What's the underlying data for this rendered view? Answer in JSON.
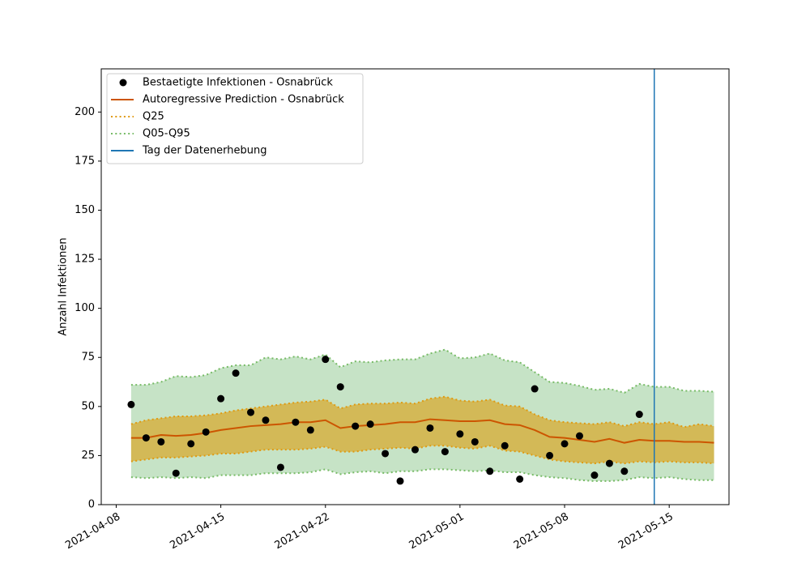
{
  "chart_data": {
    "type": "line",
    "ylabel": "Anzahl Infektionen",
    "x": [
      "2021-04-09",
      "2021-04-10",
      "2021-04-11",
      "2021-04-12",
      "2021-04-13",
      "2021-04-14",
      "2021-04-15",
      "2021-04-16",
      "2021-04-17",
      "2021-04-18",
      "2021-04-19",
      "2021-04-20",
      "2021-04-21",
      "2021-04-22",
      "2021-04-23",
      "2021-04-24",
      "2021-04-25",
      "2021-04-26",
      "2021-04-27",
      "2021-04-28",
      "2021-04-29",
      "2021-04-30",
      "2021-05-01",
      "2021-05-02",
      "2021-05-03",
      "2021-05-04",
      "2021-05-05",
      "2021-05-06",
      "2021-05-07",
      "2021-05-08",
      "2021-05-09",
      "2021-05-10",
      "2021-05-11",
      "2021-05-12",
      "2021-05-13",
      "2021-05-14",
      "2021-05-15",
      "2021-05-16",
      "2021-05-17",
      "2021-05-18"
    ],
    "series": [
      {
        "name": "Bestaetigte Infektionen - Osnabrück",
        "type": "scatter",
        "color": "#000000",
        "values": [
          51,
          34,
          32,
          16,
          31,
          37,
          54,
          67,
          47,
          43,
          19,
          42,
          38,
          74,
          60,
          40,
          41,
          26,
          12,
          28,
          39,
          27,
          36,
          32,
          17,
          30,
          13,
          59,
          25,
          31,
          35,
          15,
          21,
          17,
          46,
          null,
          null,
          null,
          null,
          null
        ]
      },
      {
        "name": "Autoregressive Prediction - Osnabrück",
        "type": "line",
        "color": "#cc5500",
        "values": [
          34,
          34,
          35.5,
          35,
          35.5,
          36.5,
          38,
          39,
          40,
          40.5,
          41,
          42,
          42,
          43,
          39,
          40,
          40.5,
          41,
          42,
          42,
          43.5,
          43,
          42.5,
          42.5,
          43,
          41,
          40.5,
          38,
          34.5,
          34,
          33,
          32,
          33.5,
          31.5,
          33,
          32.5,
          32.5,
          32,
          32,
          31.5
        ]
      },
      {
        "name": "Q25",
        "type": "band",
        "color": "#e09a10",
        "fill": "#d4b44a",
        "upper": [
          41,
          43,
          44,
          45,
          45,
          45.5,
          46.5,
          48,
          49,
          50,
          51,
          52,
          52.5,
          53.5,
          49,
          51,
          51.5,
          51.5,
          52,
          51.5,
          54,
          55,
          53,
          52.5,
          53.5,
          50.5,
          50,
          46,
          43,
          42,
          41.5,
          41,
          42,
          40,
          42,
          41,
          42,
          39.5,
          41,
          40
        ],
        "lower": [
          22,
          23,
          24,
          24,
          24.5,
          25,
          26,
          26,
          27,
          28,
          28,
          28,
          28.5,
          29.5,
          27,
          27,
          28,
          28.5,
          29,
          28.5,
          30,
          30,
          29,
          28.5,
          30,
          27.5,
          27,
          25,
          23,
          22,
          21.5,
          21,
          22,
          21,
          22,
          21.5,
          22,
          21.5,
          21.5,
          21
        ]
      },
      {
        "name": "Q05-Q95",
        "type": "band",
        "color": "#77bb66",
        "fill": "#c0e0c0",
        "upper": [
          61,
          61,
          62.5,
          65.5,
          65,
          66,
          69.5,
          71,
          71,
          75,
          74,
          75.5,
          74,
          76.5,
          70,
          73,
          72.5,
          73.5,
          74,
          74,
          77,
          79,
          74.5,
          75,
          77,
          73.5,
          72.5,
          67.5,
          62.5,
          62,
          60.5,
          58.5,
          59,
          57,
          61.5,
          60,
          60,
          58,
          58,
          57.5
        ],
        "lower": [
          14,
          13.5,
          14,
          13.5,
          14,
          13.5,
          15,
          15,
          15,
          16,
          16,
          16,
          16.5,
          18,
          15.5,
          16.5,
          17,
          16,
          17,
          17,
          18,
          18,
          17.5,
          17,
          17.5,
          16.5,
          16.5,
          15,
          14,
          13.5,
          12.5,
          12,
          12,
          12.5,
          14,
          13.5,
          14,
          13,
          12.5,
          12.5
        ]
      }
    ],
    "vline": {
      "name": "Tag der Datenerhebung",
      "x": "2021-05-14",
      "color": "#1f77b4"
    },
    "xlim": [
      "2021-04-07",
      "2021-05-19"
    ],
    "xticks": [
      "2021-04-08",
      "2021-04-15",
      "2021-04-22",
      "2021-05-01",
      "2021-05-08",
      "2021-05-15"
    ],
    "ylim": [
      0,
      222
    ],
    "yticks": [
      0,
      25,
      50,
      75,
      100,
      125,
      150,
      175,
      200
    ],
    "legend": "upper left"
  }
}
